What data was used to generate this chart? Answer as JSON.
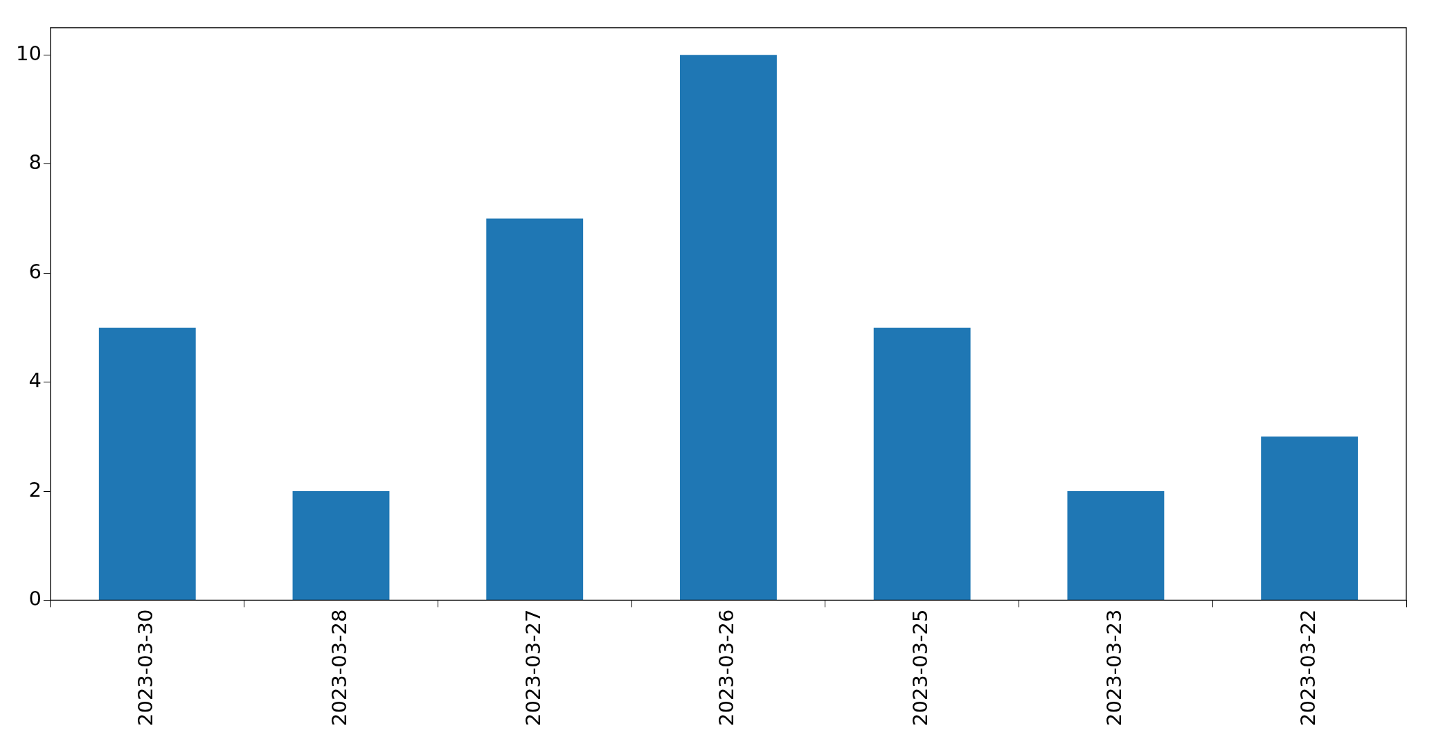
{
  "chart_data": {
    "type": "bar",
    "categories": [
      "2023-03-30",
      "2023-03-28",
      "2023-03-27",
      "2023-03-26",
      "2023-03-25",
      "2023-03-23",
      "2023-03-22"
    ],
    "values": [
      5,
      2,
      7,
      10,
      5,
      2,
      3
    ],
    "color": "#1f77b4",
    "ylim": [
      0,
      10.5
    ],
    "yticks": [
      0,
      2,
      4,
      6,
      8,
      10
    ],
    "grid": false,
    "legend": false
  }
}
